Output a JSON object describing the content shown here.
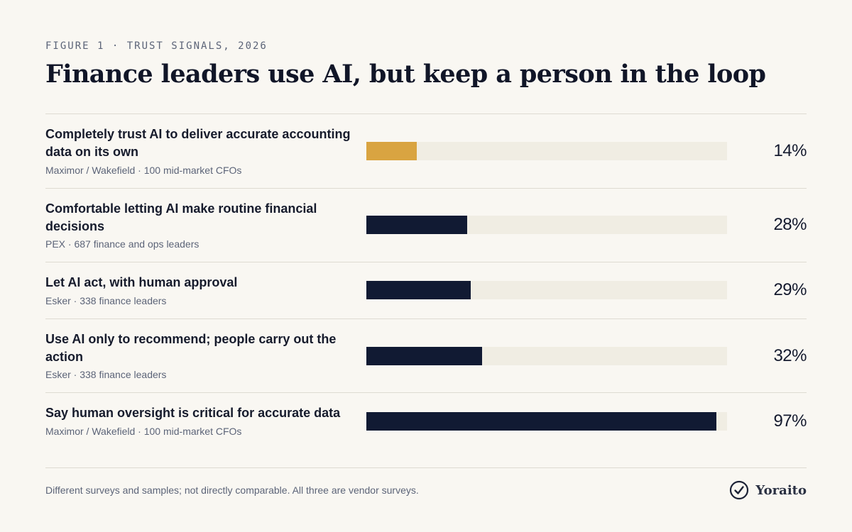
{
  "eyebrow": "FIGURE 1 · TRUST SIGNALS, 2026",
  "title": "Finance leaders use AI, but keep a person in the loop",
  "colors": {
    "highlight": "#d9a441",
    "bar": "#111a33",
    "track": "#f0ede3"
  },
  "chart_data": {
    "type": "bar",
    "orientation": "horizontal",
    "xlim": [
      0,
      100
    ],
    "unit": "%",
    "grid": false,
    "categories": [
      "Completely trust AI to deliver accurate accounting data on its own",
      "Comfortable letting AI make routine financial decisions",
      "Let AI act, with human approval",
      "Use AI only to recommend; people carry out the action",
      "Say human oversight is critical for accurate data"
    ],
    "values": [
      14,
      28,
      29,
      32,
      97
    ],
    "rows": [
      {
        "label": "Completely trust AI to deliver accurate accounting data on its own",
        "source": "Maximor / Wakefield · 100 mid-market CFOs",
        "value": 14,
        "value_label": "14%",
        "highlight": true
      },
      {
        "label": "Comfortable letting AI make routine financial decisions",
        "source": "PEX · 687 finance and ops leaders",
        "value": 28,
        "value_label": "28%",
        "highlight": false
      },
      {
        "label": "Let AI act, with human approval",
        "source": "Esker · 338 finance leaders",
        "value": 29,
        "value_label": "29%",
        "highlight": false
      },
      {
        "label": "Use AI only to recommend; people carry out the action",
        "source": "Esker · 338 finance leaders",
        "value": 32,
        "value_label": "32%",
        "highlight": false
      },
      {
        "label": "Say human oversight is critical for accurate data",
        "source": "Maximor / Wakefield · 100 mid-market CFOs",
        "value": 97,
        "value_label": "97%",
        "highlight": false
      }
    ]
  },
  "footer": {
    "note": "Different surveys and samples; not directly comparable. All three are vendor surveys.",
    "brand_name": "Yoraito",
    "brand_icon": "check-circle-icon"
  }
}
